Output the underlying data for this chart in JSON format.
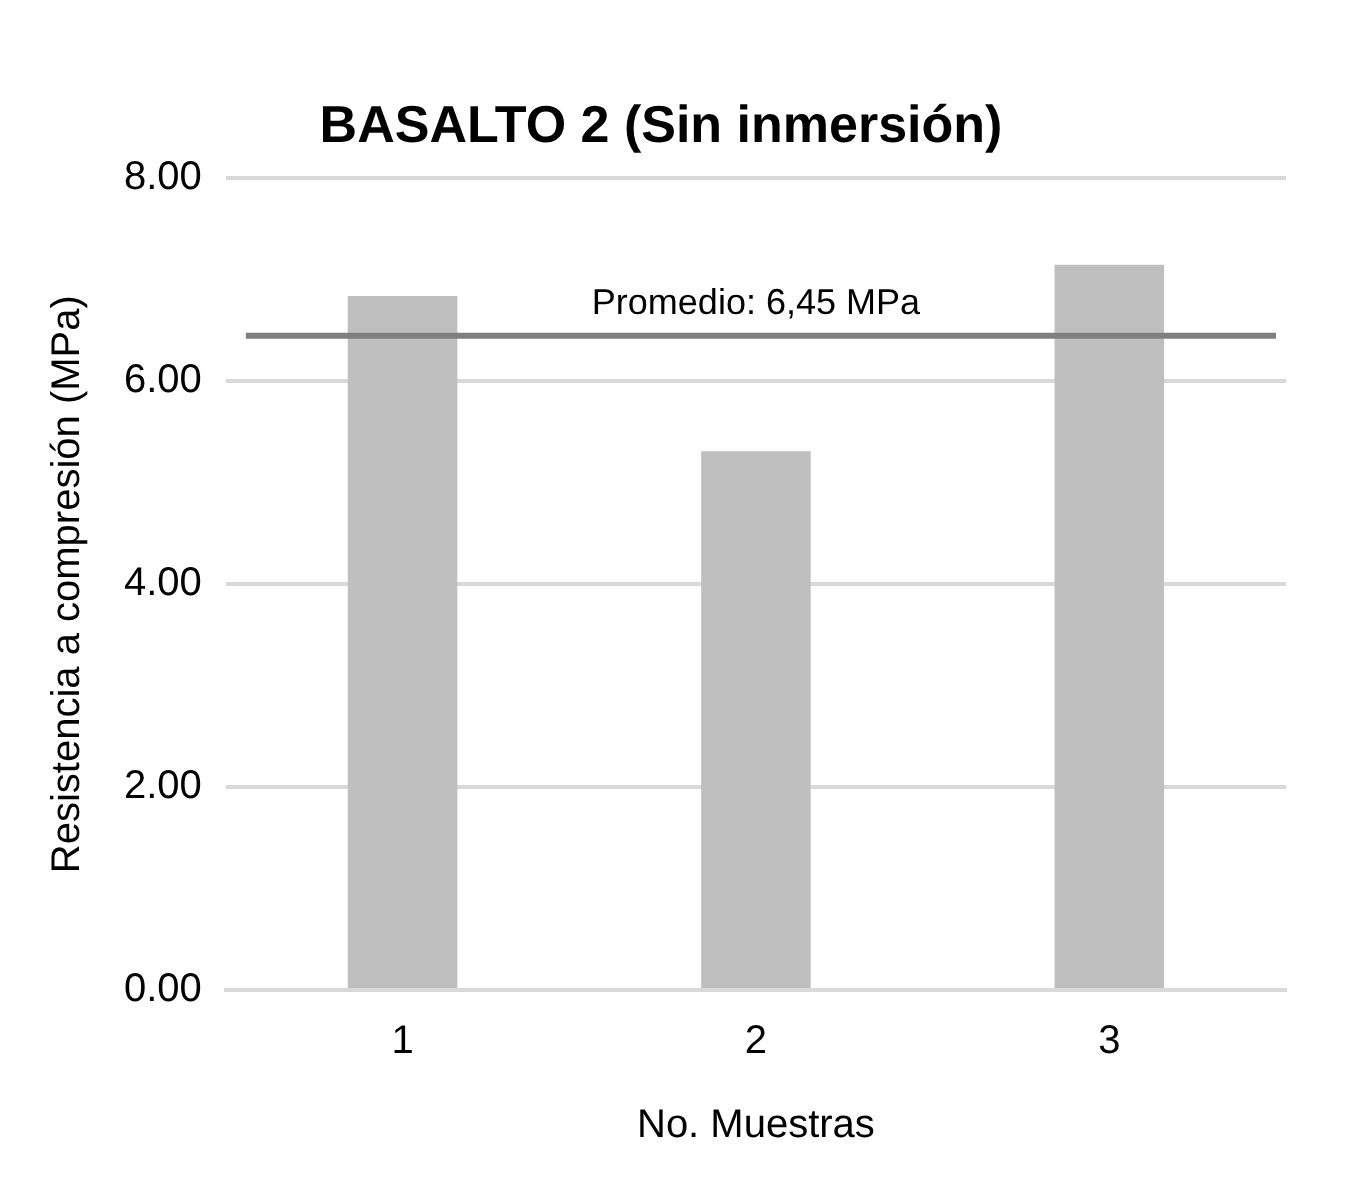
{
  "chart_data": {
    "type": "bar",
    "title": "BASALTO 2 (Sin inmersión)",
    "xlabel": "No. Muestras",
    "ylabel": "Resistencia a compresión (MPa)",
    "categories": [
      "1",
      "2",
      "3"
    ],
    "values": [
      6.84,
      5.31,
      7.15
    ],
    "color": "#bfbfbf",
    "ylim": [
      0,
      8
    ],
    "yticks": [
      {
        "value": 0,
        "label": "0.00"
      },
      {
        "value": 2,
        "label": "2.00"
      },
      {
        "value": 4,
        "label": "4.00"
      },
      {
        "value": 6,
        "label": "6.00"
      },
      {
        "value": 8,
        "label": "8.00"
      }
    ],
    "grid": "y",
    "legend": false,
    "ref_lines": [
      {
        "axis": "y",
        "value": 6.45,
        "label": "Promedio: 6,45 MPa",
        "color": "#7f7f7f"
      }
    ]
  }
}
